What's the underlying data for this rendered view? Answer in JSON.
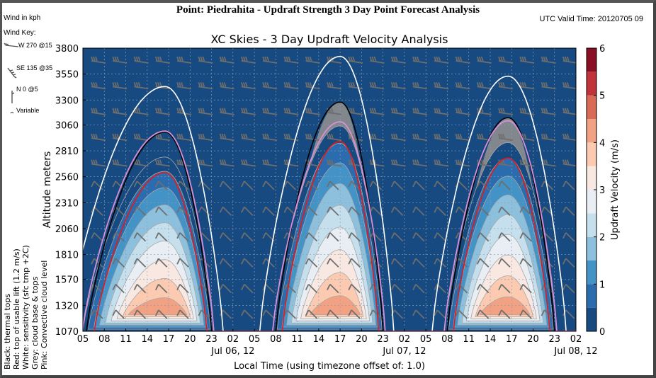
{
  "header": {
    "title": "Point: Piedrahita - Updraft Strength 3 Day Point Forecast Analysis",
    "utc_valid_time": "UTC Valid Time: 20120705 09"
  },
  "wind_panel": {
    "units": "Wind in kph",
    "key_label": "Wind Key:",
    "key_items": [
      {
        "label": "W 270 @15",
        "icon": "wind-barb-icon"
      },
      {
        "label": "SE 135 @35",
        "icon": "wind-barb-icon"
      },
      {
        "label": "N 0 @5",
        "icon": "wind-barb-icon"
      },
      {
        "label": "Variable",
        "icon": "variable-wind-icon"
      }
    ]
  },
  "legend_notes": [
    "Black: thermal tops",
    "Red: top of usable lift (1.2 m/s)",
    "White: sensitivity (sfc tmp +2C)",
    "Grey: cloud base & tops",
    "Pink: Convective cloud level"
  ],
  "chart_data": {
    "type": "heatmap",
    "title": "XC Skies - 3 Day Updraft Velocity Analysis",
    "xlabel": "Local Time (using timezone offset of: 1.0)",
    "ylabel": "Altitude meters",
    "x_tick_labels": [
      "05",
      "08",
      "11",
      "14",
      "17",
      "20",
      "23",
      "02",
      "05",
      "08",
      "11",
      "14",
      "17",
      "20",
      "23",
      "02",
      "05",
      "08",
      "11",
      "14",
      "17",
      "20",
      "23",
      "02"
    ],
    "x_date_labels": [
      {
        "after_tick": 8,
        "label": "Jul 06, 12"
      },
      {
        "after_tick": 16,
        "label": "Jul 07, 12"
      },
      {
        "after_tick": 24,
        "label": "Jul 08, 12"
      }
    ],
    "x_hours_range": [
      0,
      69
    ],
    "y_ticks": [
      1070,
      1320,
      1570,
      1810,
      2060,
      2310,
      2560,
      2810,
      3060,
      3300,
      3550,
      3800
    ],
    "ylim": [
      1070,
      3800
    ],
    "grid": true,
    "colorbar": {
      "label": "Updraft Velocity (m/s)",
      "range": [
        0,
        6
      ],
      "tick_labels": [
        "0",
        "1",
        "2",
        "3",
        "4",
        "5",
        "6"
      ],
      "levels": [
        0,
        0.5,
        1,
        1.5,
        2,
        2.5,
        3,
        3.5,
        4,
        4.5,
        5,
        5.5,
        6
      ],
      "colors": [
        "#174a80",
        "#2b6cae",
        "#4493c6",
        "#8dc0dd",
        "#c6dfed",
        "#e8eef3",
        "#f9e8e2",
        "#fbcab0",
        "#f2a283",
        "#d96a55",
        "#c1323a",
        "#8b0f24"
      ]
    },
    "days": [
      {
        "start_h": 0.5,
        "peak_h": 11.5,
        "end_h": 18.0,
        "thermal_top": 2990,
        "usable_lift": 2600,
        "sensitivity": 3430,
        "ccl": 3000,
        "cloud_top": null,
        "max_updraft": 3.6
      },
      {
        "start_h": 27.0,
        "peak_h": 36.0,
        "end_h": 42.0,
        "thermal_top": 3280,
        "usable_lift": 2900,
        "sensitivity": 3720,
        "ccl": 3090,
        "cloud_top": 3280,
        "max_updraft": 3.7
      },
      {
        "start_h": 51.0,
        "peak_h": 59.5,
        "end_h": 66.0,
        "thermal_top": 3130,
        "usable_lift": 2740,
        "sensitivity": 3530,
        "ccl": 3100,
        "cloud_top": 3130,
        "max_updraft": 3.6
      }
    ],
    "contour_labels": [
      "0",
      "1",
      "2",
      "3"
    ]
  },
  "colors": {
    "background": "#174a80",
    "thermal_tops": "#000000",
    "usable_lift": "#e3191c",
    "sensitivity": "#ffffff",
    "cloud": "#8e8e8e",
    "ccl": "#d98fd9",
    "barb": "#6e6e6e",
    "grid": "#8aa0b8"
  }
}
